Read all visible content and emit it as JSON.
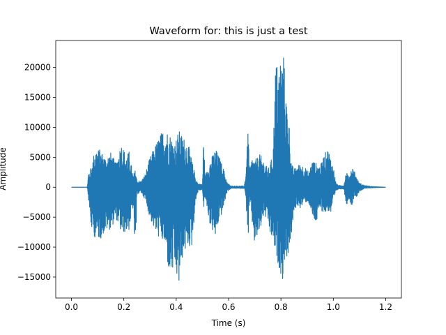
{
  "chart_data": {
    "type": "line",
    "title": "Waveform for: this is just a test",
    "xlabel": "Time (s)",
    "ylabel": "Amplitude",
    "xlim": [
      -0.06,
      1.26
    ],
    "ylim": [
      -18500,
      24500
    ],
    "xticks": [
      0.0,
      0.2,
      0.4,
      0.6,
      0.8,
      1.0,
      1.2
    ],
    "xtick_labels": [
      "0.0",
      "0.2",
      "0.4",
      "0.6",
      "0.8",
      "1.0",
      "1.2"
    ],
    "yticks": [
      -15000,
      -10000,
      -5000,
      0,
      5000,
      10000,
      15000,
      20000
    ],
    "ytick_labels": [
      "−15000",
      "−10000",
      "−5000",
      "0",
      "5000",
      "10000",
      "15000",
      "20000"
    ],
    "grid": false,
    "legend": "none",
    "series": [
      {
        "color": "#1f77b4",
        "duration": 1.2,
        "envelope": [
          [
            0.0,
            0,
            0
          ],
          [
            0.06,
            0,
            0
          ],
          [
            0.065,
            2500,
            -2000
          ],
          [
            0.075,
            3300,
            -6800
          ],
          [
            0.09,
            6500,
            -8500
          ],
          [
            0.11,
            6300,
            -8700
          ],
          [
            0.13,
            5000,
            -7300
          ],
          [
            0.15,
            5800,
            -7000
          ],
          [
            0.17,
            4000,
            -5200
          ],
          [
            0.19,
            7500,
            -7800
          ],
          [
            0.21,
            5200,
            -7500
          ],
          [
            0.22,
            6000,
            -7200
          ],
          [
            0.235,
            2000,
            -3500
          ],
          [
            0.245,
            3000,
            -12400
          ],
          [
            0.25,
            1200,
            -1200
          ],
          [
            0.265,
            1000,
            -800
          ],
          [
            0.28,
            2000,
            -2000
          ],
          [
            0.3,
            5000,
            -5200
          ],
          [
            0.32,
            7000,
            -7500
          ],
          [
            0.335,
            8500,
            -8500
          ],
          [
            0.355,
            10000,
            -9600
          ],
          [
            0.375,
            9000,
            -15000
          ],
          [
            0.395,
            7500,
            -14000
          ],
          [
            0.41,
            9500,
            -16800
          ],
          [
            0.425,
            8500,
            -11500
          ],
          [
            0.445,
            7500,
            -10000
          ],
          [
            0.46,
            4500,
            -10000
          ],
          [
            0.475,
            1500,
            -2000
          ],
          [
            0.485,
            500,
            -500
          ],
          [
            0.495,
            600,
            -500
          ],
          [
            0.5,
            300,
            -300
          ],
          [
            0.505,
            9000,
            -4000
          ],
          [
            0.51,
            2000,
            -1500
          ],
          [
            0.53,
            4500,
            -6500
          ],
          [
            0.55,
            6500,
            -8500
          ],
          [
            0.565,
            5000,
            -5200
          ],
          [
            0.575,
            3800,
            -4500
          ],
          [
            0.585,
            2500,
            -2500
          ],
          [
            0.595,
            700,
            -700
          ],
          [
            0.61,
            200,
            -200
          ],
          [
            0.66,
            200,
            -200
          ],
          [
            0.665,
            2000,
            -1500
          ],
          [
            0.675,
            10000,
            -8800
          ],
          [
            0.68,
            3000,
            -2000
          ],
          [
            0.69,
            5000,
            -6000
          ],
          [
            0.7,
            4500,
            -10000
          ],
          [
            0.71,
            5000,
            -8500
          ],
          [
            0.72,
            5500,
            -7500
          ],
          [
            0.735,
            4500,
            -4500
          ],
          [
            0.75,
            3000,
            -6000
          ],
          [
            0.76,
            4000,
            -8500
          ],
          [
            0.77,
            6000,
            -8800
          ],
          [
            0.78,
            21500,
            -12000
          ],
          [
            0.79,
            20000,
            -13000
          ],
          [
            0.8,
            22500,
            -14500
          ],
          [
            0.805,
            21000,
            -16700
          ],
          [
            0.81,
            22500,
            -13000
          ],
          [
            0.82,
            15000,
            -12000
          ],
          [
            0.83,
            12000,
            -11000
          ],
          [
            0.84,
            4000,
            -8000
          ],
          [
            0.85,
            3000,
            -4500
          ],
          [
            0.86,
            3500,
            -3000
          ],
          [
            0.875,
            4000,
            -3500
          ],
          [
            0.89,
            3500,
            -2500
          ],
          [
            0.905,
            2500,
            -2500
          ],
          [
            0.92,
            4500,
            -5000
          ],
          [
            0.935,
            4000,
            -6200
          ],
          [
            0.95,
            3500,
            -3500
          ],
          [
            0.965,
            5500,
            -4500
          ],
          [
            0.98,
            6500,
            -4000
          ],
          [
            0.99,
            5000,
            -4500
          ],
          [
            1.0,
            3500,
            -2500
          ],
          [
            1.01,
            700,
            -700
          ],
          [
            1.02,
            300,
            -300
          ],
          [
            1.04,
            300,
            -300
          ],
          [
            1.05,
            3000,
            -3000
          ],
          [
            1.06,
            1500,
            -2000
          ],
          [
            1.07,
            3500,
            -3200
          ],
          [
            1.08,
            3000,
            -1500
          ],
          [
            1.09,
            1500,
            -1500
          ],
          [
            1.1,
            700,
            -700
          ],
          [
            1.12,
            300,
            -200
          ],
          [
            1.15,
            100,
            -100
          ],
          [
            1.2,
            0,
            0
          ]
        ]
      }
    ]
  }
}
